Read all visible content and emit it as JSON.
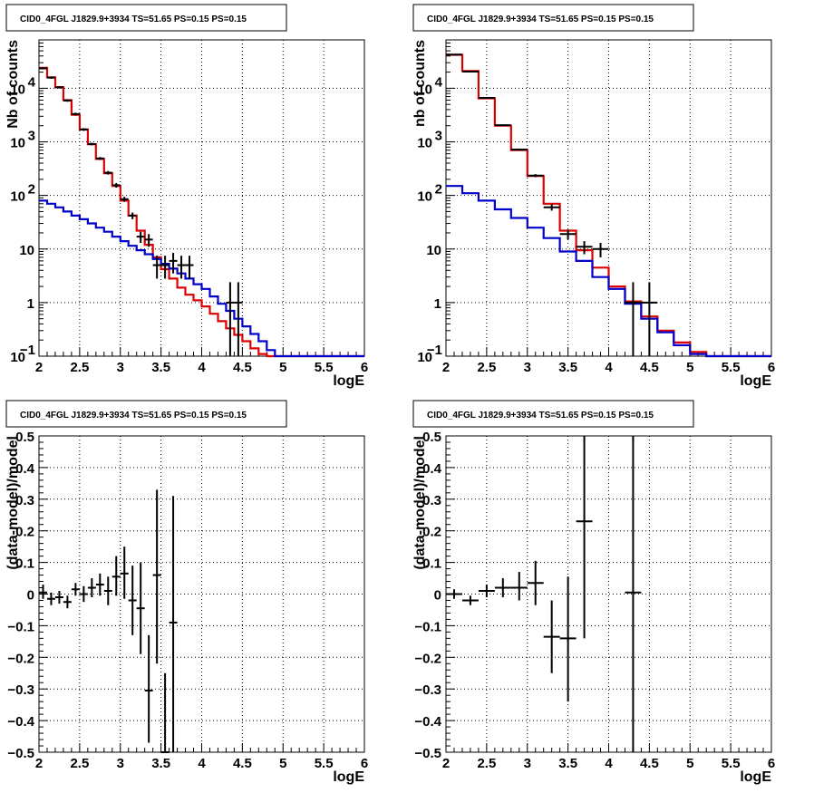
{
  "chart_data": [
    {
      "type": "histogram",
      "title": "CID0_4FGL J1829.9+3934 TS=51.65 PS=0.15 PS=0.15",
      "xlabel": "logE",
      "ylabel": "Nb of counts",
      "xlim": [
        2,
        6
      ],
      "ylim": [
        0.1,
        80000
      ],
      "ylog": true,
      "grid": true,
      "xticks": [
        "2",
        "2.5",
        "3",
        "3.5",
        "4",
        "4.5",
        "5",
        "5.5",
        "6"
      ],
      "yticks": [
        {
          "v": 0.1,
          "label": "10",
          "sup": "−1"
        },
        {
          "v": 1,
          "label": "1",
          "sup": ""
        },
        {
          "v": 10,
          "label": "10",
          "sup": ""
        },
        {
          "v": 100,
          "label": "10",
          "sup": "2"
        },
        {
          "v": 1000,
          "label": "10",
          "sup": "3"
        },
        {
          "v": 10000,
          "label": "10",
          "sup": "4"
        }
      ],
      "edges": [
        2.0,
        2.1,
        2.2,
        2.3,
        2.4,
        2.5,
        2.6,
        2.7,
        2.8,
        2.9,
        3.0,
        3.1,
        3.2,
        3.3,
        3.4,
        3.5,
        3.6,
        3.7,
        3.8,
        3.9,
        4.0,
        4.1,
        4.2,
        4.3,
        4.4,
        4.5,
        4.6,
        4.7,
        4.8,
        4.9,
        5.0,
        5.1,
        5.2,
        5.3,
        5.4,
        5.5,
        5.6,
        5.7,
        5.8,
        5.9,
        6.0
      ],
      "series": [
        {
          "color": "#dd0000",
          "values": [
            24000,
            16000,
            10500,
            6000,
            3200,
            1700,
            900,
            480,
            260,
            150,
            80,
            42,
            22,
            12,
            7,
            4.2,
            2.8,
            1.9,
            1.4,
            1.1,
            0.85,
            0.62,
            0.45,
            0.33,
            0.25,
            0.19,
            0.14,
            0.11,
            0.1,
            0.1,
            0.1,
            0.1,
            0.1,
            0.1,
            0.1,
            0.1,
            0.1,
            0.1,
            0.1,
            0.1
          ]
        },
        {
          "color": "#0000cc",
          "values": [
            80,
            70,
            60,
            50,
            42,
            36,
            30,
            25,
            21,
            17,
            14,
            11.5,
            9.5,
            8,
            6.5,
            5.3,
            4.3,
            3.5,
            2.8,
            2.2,
            1.8,
            1.3,
            0.95,
            0.7,
            0.5,
            0.36,
            0.26,
            0.19,
            0.13,
            0.1,
            0.1,
            0.1,
            0.1,
            0.1,
            0.1,
            0.1,
            0.1,
            0.1,
            0.1,
            0.1
          ]
        }
      ],
      "points": [
        {
          "x": 2.05,
          "y": 23500,
          "xerr": 0.05,
          "ylo": 22500,
          "yhi": 24500
        },
        {
          "x": 2.15,
          "y": 15800,
          "xerr": 0.05,
          "ylo": 15000,
          "yhi": 16600
        },
        {
          "x": 2.25,
          "y": 10400,
          "xerr": 0.05,
          "ylo": 9900,
          "yhi": 10900
        },
        {
          "x": 2.35,
          "y": 5900,
          "xerr": 0.05,
          "ylo": 5600,
          "yhi": 6200
        },
        {
          "x": 2.45,
          "y": 3300,
          "xerr": 0.05,
          "ylo": 3100,
          "yhi": 3500
        },
        {
          "x": 2.55,
          "y": 1700,
          "xerr": 0.05,
          "ylo": 1600,
          "yhi": 1800
        },
        {
          "x": 2.65,
          "y": 910,
          "xerr": 0.05,
          "ylo": 860,
          "yhi": 960
        },
        {
          "x": 2.75,
          "y": 490,
          "xerr": 0.05,
          "ylo": 460,
          "yhi": 520
        },
        {
          "x": 2.85,
          "y": 265,
          "xerr": 0.05,
          "ylo": 245,
          "yhi": 285
        },
        {
          "x": 2.95,
          "y": 155,
          "xerr": 0.05,
          "ylo": 140,
          "yhi": 170
        },
        {
          "x": 3.05,
          "y": 85,
          "xerr": 0.05,
          "ylo": 76,
          "yhi": 94
        },
        {
          "x": 3.15,
          "y": 42,
          "xerr": 0.05,
          "ylo": 36,
          "yhi": 48
        },
        {
          "x": 3.25,
          "y": 17,
          "xerr": 0.05,
          "ylo": 13,
          "yhi": 21
        },
        {
          "x": 3.35,
          "y": 15,
          "xerr": 0.05,
          "ylo": 11,
          "yhi": 19
        },
        {
          "x": 3.45,
          "y": 5,
          "xerr": 0.05,
          "ylo": 2.8,
          "yhi": 7.5
        },
        {
          "x": 3.55,
          "y": 5,
          "xerr": 0.05,
          "ylo": 2.8,
          "yhi": 7.5
        },
        {
          "x": 3.65,
          "y": 6,
          "xerr": 0.05,
          "ylo": 3.5,
          "yhi": 8.5
        },
        {
          "x": 3.75,
          "y": 5,
          "xerr": 0.05,
          "ylo": 2.8,
          "yhi": 7.5
        },
        {
          "x": 3.85,
          "y": 5,
          "xerr": 0.05,
          "ylo": 2.8,
          "yhi": 7.5
        },
        {
          "x": 4.35,
          "y": 1,
          "xerr": 0.05,
          "ylo": 0.1,
          "yhi": 2.4
        },
        {
          "x": 4.45,
          "y": 1,
          "xerr": 0.05,
          "ylo": 0.1,
          "yhi": 2.4
        }
      ]
    },
    {
      "type": "histogram",
      "title": "CID0_4FGL J1829.9+3934 TS=51.65 PS=0.15 PS=0.15",
      "xlabel": "logE",
      "ylabel": "nb of counts",
      "xlim": [
        2,
        6
      ],
      "ylim": [
        0.1,
        80000
      ],
      "ylog": true,
      "grid": true,
      "xticks": [
        "2",
        "2.5",
        "3",
        "3.5",
        "4",
        "4.5",
        "5",
        "5.5",
        "6"
      ],
      "yticks": [
        {
          "v": 0.1,
          "label": "10",
          "sup": "−1"
        },
        {
          "v": 1,
          "label": "1",
          "sup": ""
        },
        {
          "v": 10,
          "label": "10",
          "sup": ""
        },
        {
          "v": 100,
          "label": "10",
          "sup": "2"
        },
        {
          "v": 1000,
          "label": "10",
          "sup": "3"
        },
        {
          "v": 10000,
          "label": "10",
          "sup": "4"
        }
      ],
      "edges": [
        2.0,
        2.2,
        2.4,
        2.6,
        2.8,
        3.0,
        3.2,
        3.4,
        3.6,
        3.8,
        4.0,
        4.2,
        4.4,
        4.6,
        4.8,
        5.0,
        5.2,
        5.4,
        5.6,
        5.8,
        6.0
      ],
      "series": [
        {
          "color": "#dd0000",
          "values": [
            42000,
            21000,
            6500,
            2000,
            700,
            230,
            70,
            22,
            9.5,
            4.5,
            2.0,
            1.05,
            0.55,
            0.3,
            0.18,
            0.12,
            0.1,
            0.1,
            0.1,
            0.1
          ]
        },
        {
          "color": "#0000cc",
          "values": [
            150,
            110,
            80,
            55,
            38,
            25,
            16,
            9,
            6,
            3,
            1.8,
            0.95,
            0.5,
            0.28,
            0.16,
            0.11,
            0.1,
            0.1,
            0.1,
            0.1
          ]
        }
      ],
      "points": [
        {
          "x": 2.1,
          "y": 42500,
          "xerr": 0.1,
          "ylo": 41500,
          "yhi": 43500
        },
        {
          "x": 2.3,
          "y": 20500,
          "xerr": 0.1,
          "ylo": 20000,
          "yhi": 21000
        },
        {
          "x": 2.5,
          "y": 6600,
          "xerr": 0.1,
          "ylo": 6400,
          "yhi": 6800
        },
        {
          "x": 2.7,
          "y": 2050,
          "xerr": 0.1,
          "ylo": 1980,
          "yhi": 2120
        },
        {
          "x": 2.9,
          "y": 720,
          "xerr": 0.1,
          "ylo": 690,
          "yhi": 750
        },
        {
          "x": 3.1,
          "y": 235,
          "xerr": 0.1,
          "ylo": 220,
          "yhi": 250
        },
        {
          "x": 3.3,
          "y": 60,
          "xerr": 0.1,
          "ylo": 52,
          "yhi": 68
        },
        {
          "x": 3.5,
          "y": 19,
          "xerr": 0.1,
          "ylo": 15,
          "yhi": 23
        },
        {
          "x": 3.7,
          "y": 11,
          "xerr": 0.1,
          "ylo": 8,
          "yhi": 14
        },
        {
          "x": 3.9,
          "y": 10,
          "xerr": 0.1,
          "ylo": 7,
          "yhi": 13
        },
        {
          "x": 4.3,
          "y": 1,
          "xerr": 0.1,
          "ylo": 0.1,
          "yhi": 2.4
        },
        {
          "x": 4.5,
          "y": 1,
          "xerr": 0.1,
          "ylo": 0.1,
          "yhi": 2.4
        }
      ]
    },
    {
      "type": "scatter",
      "title": "CID0_4FGL J1829.9+3934 TS=51.65 PS=0.15 PS=0.15",
      "xlabel": "logE",
      "ylabel": "(data-model)/model",
      "xlim": [
        2,
        6
      ],
      "ylim": [
        -0.5,
        0.5
      ],
      "ylog": false,
      "grid": true,
      "xticks": [
        "2",
        "2.5",
        "3",
        "3.5",
        "4",
        "4.5",
        "5",
        "5.5",
        "6"
      ],
      "yticks": [
        {
          "v": -0.5,
          "label": "−0.5",
          "sup": ""
        },
        {
          "v": -0.4,
          "label": "−0.4",
          "sup": ""
        },
        {
          "v": -0.3,
          "label": "−0.3",
          "sup": ""
        },
        {
          "v": -0.2,
          "label": "−0.2",
          "sup": ""
        },
        {
          "v": -0.1,
          "label": "−0.1",
          "sup": ""
        },
        {
          "v": 0,
          "label": "0",
          "sup": ""
        },
        {
          "v": 0.1,
          "label": "0.1",
          "sup": ""
        },
        {
          "v": 0.2,
          "label": "0.2",
          "sup": ""
        },
        {
          "v": 0.3,
          "label": "0.3",
          "sup": ""
        },
        {
          "v": 0.4,
          "label": "0.4",
          "sup": ""
        },
        {
          "v": 0.5,
          "label": "0.5",
          "sup": ""
        }
      ],
      "points": [
        {
          "x": 2.05,
          "y": 0.005,
          "xerr": 0.05,
          "ylo": -0.015,
          "yhi": 0.03
        },
        {
          "x": 2.15,
          "y": -0.015,
          "xerr": 0.05,
          "ylo": -0.035,
          "yhi": 0.005
        },
        {
          "x": 2.25,
          "y": -0.01,
          "xerr": 0.05,
          "ylo": -0.03,
          "yhi": 0.01
        },
        {
          "x": 2.35,
          "y": -0.025,
          "xerr": 0.05,
          "ylo": -0.045,
          "yhi": -0.005
        },
        {
          "x": 2.45,
          "y": 0.015,
          "xerr": 0.05,
          "ylo": -0.005,
          "yhi": 0.035
        },
        {
          "x": 2.55,
          "y": 0.0,
          "xerr": 0.05,
          "ylo": -0.025,
          "yhi": 0.025
        },
        {
          "x": 2.65,
          "y": 0.02,
          "xerr": 0.05,
          "ylo": -0.01,
          "yhi": 0.05
        },
        {
          "x": 2.75,
          "y": 0.03,
          "xerr": 0.05,
          "ylo": -0.005,
          "yhi": 0.065
        },
        {
          "x": 2.85,
          "y": 0.01,
          "xerr": 0.05,
          "ylo": -0.035,
          "yhi": 0.055
        },
        {
          "x": 2.95,
          "y": 0.055,
          "xerr": 0.05,
          "ylo": -0.005,
          "yhi": 0.12
        },
        {
          "x": 3.05,
          "y": 0.065,
          "xerr": 0.05,
          "ylo": -0.015,
          "yhi": 0.15
        },
        {
          "x": 3.15,
          "y": -0.02,
          "xerr": 0.05,
          "ylo": -0.13,
          "yhi": 0.09
        },
        {
          "x": 3.25,
          "y": -0.045,
          "xerr": 0.05,
          "ylo": -0.19,
          "yhi": 0.1
        },
        {
          "x": 3.35,
          "y": -0.305,
          "xerr": 0.05,
          "ylo": -0.47,
          "yhi": -0.13
        },
        {
          "x": 3.45,
          "y": 0.06,
          "xerr": 0.05,
          "ylo": -0.22,
          "yhi": 0.33
        },
        {
          "x": 3.55,
          "y": -0.5,
          "xerr": 0.05,
          "ylo": -0.5,
          "yhi": -0.25
        },
        {
          "x": 3.65,
          "y": -0.09,
          "xerr": 0.05,
          "ylo": -0.5,
          "yhi": 0.31
        }
      ]
    },
    {
      "type": "scatter",
      "title": "CID0_4FGL J1829.9+3934 TS=51.65 PS=0.15 PS=0.15",
      "xlabel": "logE",
      "ylabel": "(data-model)/model",
      "xlim": [
        2,
        6
      ],
      "ylim": [
        -0.5,
        0.5
      ],
      "ylog": false,
      "grid": true,
      "xticks": [
        "2",
        "2.5",
        "3",
        "3.5",
        "4",
        "4.5",
        "5",
        "5.5",
        "6"
      ],
      "yticks": [
        {
          "v": -0.5,
          "label": "−0.5",
          "sup": ""
        },
        {
          "v": -0.4,
          "label": "−0.4",
          "sup": ""
        },
        {
          "v": -0.3,
          "label": "−0.3",
          "sup": ""
        },
        {
          "v": -0.2,
          "label": "−0.2",
          "sup": ""
        },
        {
          "v": -0.1,
          "label": "−0.1",
          "sup": ""
        },
        {
          "v": 0,
          "label": "0",
          "sup": ""
        },
        {
          "v": 0.1,
          "label": "0.1",
          "sup": ""
        },
        {
          "v": 0.2,
          "label": "0.2",
          "sup": ""
        },
        {
          "v": 0.3,
          "label": "0.3",
          "sup": ""
        },
        {
          "v": 0.4,
          "label": "0.4",
          "sup": ""
        },
        {
          "v": 0.5,
          "label": "0.5",
          "sup": ""
        }
      ],
      "points": [
        {
          "x": 2.1,
          "y": 0.0,
          "xerr": 0.1,
          "ylo": -0.015,
          "yhi": 0.015
        },
        {
          "x": 2.3,
          "y": -0.02,
          "xerr": 0.1,
          "ylo": -0.035,
          "yhi": -0.005
        },
        {
          "x": 2.5,
          "y": 0.01,
          "xerr": 0.1,
          "ylo": -0.01,
          "yhi": 0.03
        },
        {
          "x": 2.7,
          "y": 0.02,
          "xerr": 0.1,
          "ylo": -0.01,
          "yhi": 0.05
        },
        {
          "x": 2.9,
          "y": 0.02,
          "xerr": 0.1,
          "ylo": -0.02,
          "yhi": 0.07
        },
        {
          "x": 3.1,
          "y": 0.035,
          "xerr": 0.1,
          "ylo": -0.035,
          "yhi": 0.105
        },
        {
          "x": 3.3,
          "y": -0.135,
          "xerr": 0.1,
          "ylo": -0.25,
          "yhi": -0.02
        },
        {
          "x": 3.5,
          "y": -0.14,
          "xerr": 0.1,
          "ylo": -0.34,
          "yhi": 0.055
        },
        {
          "x": 3.7,
          "y": 0.23,
          "xerr": 0.1,
          "ylo": -0.14,
          "yhi": 0.5
        },
        {
          "x": 4.3,
          "y": 0.005,
          "xerr": 0.1,
          "ylo": -0.5,
          "yhi": 0.5
        }
      ]
    }
  ]
}
